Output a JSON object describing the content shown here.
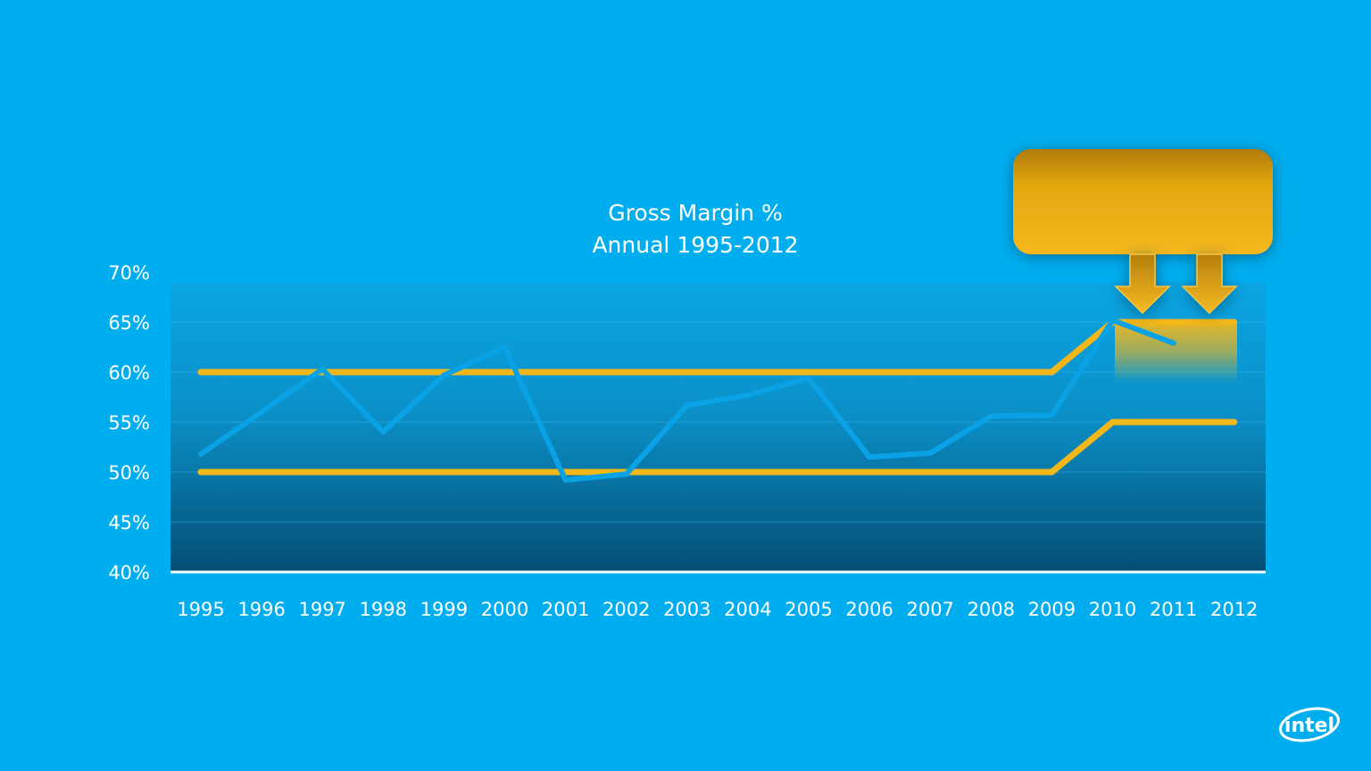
{
  "chart_data": {
    "type": "line",
    "title": "Gross Margin %",
    "subtitle": "Annual 1995-2012",
    "x": [
      "1995",
      "1996",
      "1997",
      "1998",
      "1999",
      "2000",
      "2001",
      "2002",
      "2003",
      "2004",
      "2005",
      "2006",
      "2007",
      "2008",
      "2009",
      "2010",
      "2011",
      "2012"
    ],
    "ylim": [
      40,
      70
    ],
    "yticks": [
      "40%",
      "45%",
      "50%",
      "55%",
      "60%",
      "65%",
      "70%"
    ],
    "yticks_values": [
      40,
      45,
      50,
      55,
      60,
      65,
      70
    ],
    "grid": true,
    "series": [
      {
        "values": [
          51.8,
          56.0,
          60.3,
          54.0,
          59.7,
          62.5,
          49.2,
          49.8,
          56.7,
          57.7,
          59.4,
          51.5,
          51.9,
          55.6,
          55.7,
          65.2,
          62.9,
          null
        ],
        "color": "#0aa2e6"
      },
      {
        "values": [
          60,
          60,
          60,
          60,
          60,
          60,
          60,
          60,
          60,
          60,
          60,
          60,
          60,
          60,
          60,
          65,
          65,
          65
        ],
        "color": "#f3b71a"
      },
      {
        "values": [
          50,
          50,
          50,
          50,
          50,
          50,
          50,
          50,
          50,
          50,
          50,
          50,
          50,
          50,
          50,
          55,
          55,
          55
        ],
        "color": "#f3b71a"
      }
    ]
  },
  "logo": {
    "text": "intel"
  },
  "colors": {
    "background": "#00aeef",
    "accent": "#f3b71a",
    "plot_top": "#0aa0dd",
    "plot_bottom": "#05567c"
  }
}
